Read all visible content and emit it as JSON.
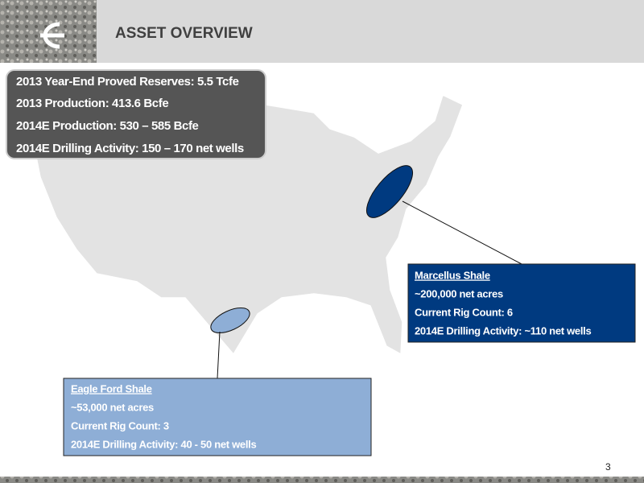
{
  "header": {
    "title": "ASSET OVERVIEW"
  },
  "summary": {
    "lines": [
      "2013 Year-End Proved Reserves: 5.5 Tcfe",
      "2013 Production: 413.6 Bcfe",
      "2014E Production:  530 – 585 Bcfe",
      "2014E Drilling Activity:  150 – 170 net wells"
    ]
  },
  "callouts": [
    {
      "title": "Marcellus Shale",
      "lines": [
        "~200,000 net acres",
        "Current Rig Count: 6",
        "2014E Drilling Activity: ~110 net wells"
      ]
    },
    {
      "title": "Eagle Ford Shale",
      "lines": [
        "~53,000 net acres",
        "Current Rig Count: 3",
        "2014E Drilling Activity: 40 - 50 net wells"
      ]
    }
  ],
  "page_number": "3"
}
